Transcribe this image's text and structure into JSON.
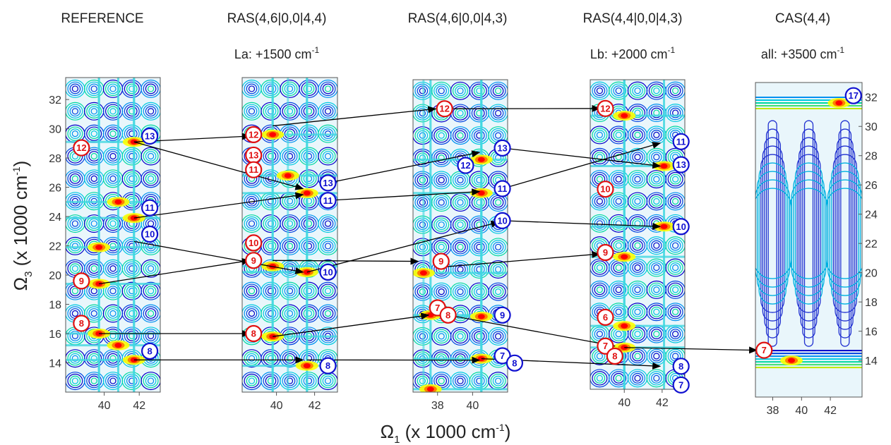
{
  "chart_data": {
    "type": "heatmap",
    "xlabel": "Ω1 (x 1000 cm-1)",
    "xlabel_parts": {
      "symbol": "Ω",
      "sub": "1",
      "rest": " (x 1000 cm",
      "sup": "-1",
      "close": ")"
    },
    "ylabel": "Ω3 (x 1000 cm-1)",
    "ylabel_parts": {
      "symbol": "Ω",
      "sub": "3",
      "rest": " (x 1000 cm",
      "sup": "-1",
      "close": ")"
    },
    "colors": {
      "low": "#0000c8",
      "mid": "#00c8c8",
      "high": "#ffff00",
      "peak": "#ff0000",
      "red_label": "#e01010",
      "blue_label": "#1010d0"
    },
    "panels": [
      {
        "title": "REFERENCE",
        "subtitle": "",
        "xlim": [
          37.8,
          43.2
        ],
        "ylim": [
          12,
          33.5
        ],
        "xticks": [
          40,
          42
        ],
        "yticks": [
          14,
          16,
          18,
          20,
          22,
          24,
          26,
          28,
          30,
          32
        ],
        "red_labels": [
          {
            "n": "12",
            "x": 38.7,
            "y": 28.7
          },
          {
            "n": "9",
            "x": 38.7,
            "y": 19.6
          },
          {
            "n": "8",
            "x": 38.7,
            "y": 16.7
          }
        ],
        "blue_labels": [
          {
            "n": "13",
            "x": 42.6,
            "y": 29.5
          },
          {
            "n": "11",
            "x": 42.6,
            "y": 24.6
          },
          {
            "n": "10",
            "x": 42.6,
            "y": 22.8
          },
          {
            "n": "8",
            "x": 42.6,
            "y": 14.8
          }
        ],
        "peaks": [
          {
            "x": 41.7,
            "y": 29.1
          },
          {
            "x": 39.7,
            "y": 19.4
          },
          {
            "x": 39.7,
            "y": 16.0
          },
          {
            "x": 41.7,
            "y": 23.9
          },
          {
            "x": 41.7,
            "y": 14.2
          },
          {
            "x": 40.8,
            "y": 25.0
          },
          {
            "x": 40.8,
            "y": 15.2
          },
          {
            "x": 39.7,
            "y": 21.9
          }
        ]
      },
      {
        "title": "RAS(4,6|0,0|4,4)",
        "subtitle": "La: +1500 cm-1",
        "subtitle_parts": {
          "text": "La: +1500 cm",
          "sup": "-1"
        },
        "xlim": [
          38.2,
          43.2
        ],
        "ylim": [
          12,
          33.5
        ],
        "xticks": [
          40,
          42
        ],
        "yticks": [],
        "red_labels": [
          {
            "n": "12",
            "x": 38.8,
            "y": 29.6
          },
          {
            "n": "13",
            "x": 38.8,
            "y": 28.2
          },
          {
            "n": "11",
            "x": 38.8,
            "y": 27.2
          },
          {
            "n": "10",
            "x": 38.8,
            "y": 22.2
          },
          {
            "n": "9",
            "x": 38.8,
            "y": 21.0
          },
          {
            "n": "8",
            "x": 38.8,
            "y": 16.0
          }
        ],
        "blue_labels": [
          {
            "n": "13",
            "x": 42.7,
            "y": 26.3
          },
          {
            "n": "11",
            "x": 42.7,
            "y": 25.1
          },
          {
            "n": "10",
            "x": 42.7,
            "y": 20.2
          },
          {
            "n": "8",
            "x": 42.7,
            "y": 13.8
          }
        ],
        "peaks": [
          {
            "x": 41.6,
            "y": 25.6
          },
          {
            "x": 39.8,
            "y": 29.6
          },
          {
            "x": 41.6,
            "y": 20.2
          },
          {
            "x": 39.8,
            "y": 20.6
          },
          {
            "x": 39.8,
            "y": 15.8
          },
          {
            "x": 41.6,
            "y": 13.8
          },
          {
            "x": 40.6,
            "y": 26.8
          }
        ]
      },
      {
        "title": "RAS(4,6|0,0|4,3)",
        "subtitle": "",
        "xlim": [
          36.6,
          42.0
        ],
        "ylim": [
          12,
          33.5
        ],
        "xticks": [
          38,
          40
        ],
        "yticks": [],
        "red_labels": [
          {
            "n": "12",
            "x": 38.4,
            "y": 31.5
          },
          {
            "n": "9",
            "x": 38.2,
            "y": 21.0
          },
          {
            "n": "7",
            "x": 38.0,
            "y": 17.8
          },
          {
            "n": "8",
            "x": 38.6,
            "y": 17.3
          }
        ],
        "blue_labels": [
          {
            "n": "13",
            "x": 41.7,
            "y": 28.8
          },
          {
            "n": "12",
            "x": 39.6,
            "y": 27.6
          },
          {
            "n": "11",
            "x": 41.7,
            "y": 26.0
          },
          {
            "n": "10",
            "x": 41.7,
            "y": 23.8
          },
          {
            "n": "9",
            "x": 41.7,
            "y": 17.3
          },
          {
            "n": "7",
            "x": 41.7,
            "y": 14.5
          },
          {
            "n": "8",
            "x": 42.4,
            "y": 14.0
          }
        ],
        "peaks": [
          {
            "x": 40.5,
            "y": 28.0
          },
          {
            "x": 40.5,
            "y": 25.7
          },
          {
            "x": 37.2,
            "y": 20.2
          },
          {
            "x": 37.6,
            "y": 17.3
          },
          {
            "x": 40.5,
            "y": 17.2
          },
          {
            "x": 37.6,
            "y": 12.2
          },
          {
            "x": 40.5,
            "y": 14.3
          }
        ]
      },
      {
        "title": "RAS(4,4|0,0|4,3)",
        "subtitle": "Lb: +2000 cm-1",
        "subtitle_parts": {
          "text": "Lb: +2000 cm",
          "sup": "-1"
        },
        "xlim": [
          38.2,
          43.2
        ],
        "ylim": [
          12,
          33.5
        ],
        "xticks": [
          40,
          42
        ],
        "yticks": [],
        "red_labels": [
          {
            "n": "12",
            "x": 39.0,
            "y": 31.5
          },
          {
            "n": "10",
            "x": 39.0,
            "y": 25.9
          },
          {
            "n": "9",
            "x": 39.0,
            "y": 21.5
          },
          {
            "n": "6",
            "x": 39.0,
            "y": 17.0
          },
          {
            "n": "7",
            "x": 39.0,
            "y": 15.0
          },
          {
            "n": "8",
            "x": 39.5,
            "y": 14.3
          }
        ],
        "blue_labels": [
          {
            "n": "11",
            "x": 43.0,
            "y": 29.2
          },
          {
            "n": "13",
            "x": 43.0,
            "y": 27.6
          },
          {
            "n": "10",
            "x": 43.0,
            "y": 23.3
          },
          {
            "n": "8",
            "x": 43.0,
            "y": 13.6
          },
          {
            "n": "7",
            "x": 43.0,
            "y": 12.3
          }
        ],
        "peaks": [
          {
            "x": 42.1,
            "y": 27.5
          },
          {
            "x": 40.0,
            "y": 21.2
          },
          {
            "x": 40.0,
            "y": 14.9
          },
          {
            "x": 40.0,
            "y": 31.0
          },
          {
            "x": 42.1,
            "y": 23.3
          },
          {
            "x": 40.0,
            "y": 16.4
          }
        ]
      },
      {
        "title": "CAS(4,4)",
        "subtitle": "all: +3500 cm-1",
        "subtitle_parts": {
          "text": "all: +3500 cm",
          "sup": "-1"
        },
        "xlim": [
          36.8,
          44.2
        ],
        "ylim": [
          11.5,
          33.0
        ],
        "xticks": [
          38,
          40,
          42
        ],
        "yticks": [
          14,
          16,
          18,
          20,
          22,
          24,
          26,
          28,
          30,
          32
        ],
        "yticks_side": "right",
        "red_labels": [
          {
            "n": "7",
            "x": 37.4,
            "y": 14.7
          }
        ],
        "blue_labels": [
          {
            "n": "17",
            "x": 43.6,
            "y": 32.1
          }
        ],
        "peaks": [
          {
            "x": 42.6,
            "y": 31.6
          },
          {
            "x": 39.3,
            "y": 14.0
          }
        ]
      }
    ]
  }
}
